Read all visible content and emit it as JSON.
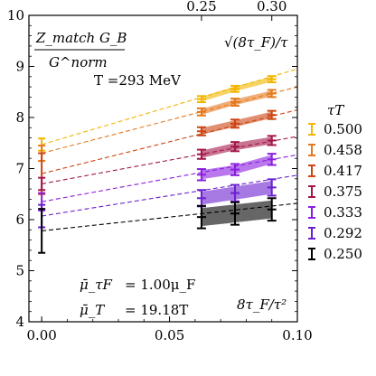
{
  "chart_data": {
    "type": "line",
    "ylabel_numerator": "Z_match G_B",
    "ylabel_denominator": "G^norm",
    "temperature_label": "T =293 MeV",
    "top_axis_label": "√(8τ_F)/τ",
    "xlabel": "8τ_F/τ²",
    "xlim": [
      -0.005,
      0.1
    ],
    "ylim": [
      4,
      10
    ],
    "xticks": [
      0.0,
      0.05,
      0.1
    ],
    "xtick_labels": [
      "0.00",
      "0.05",
      "0.10"
    ],
    "yticks": [
      4,
      5,
      6,
      7,
      8,
      9,
      10
    ],
    "ytick_labels": [
      "4",
      "5",
      "6",
      "7",
      "8",
      "9",
      "10"
    ],
    "top_ticks": [
      0.25,
      0.3
    ],
    "top_tick_labels": [
      "0.25",
      "0.30"
    ],
    "annotation_1_symbol": "μ̄_τF",
    "annotation_1_value": "= 1.00μ_F",
    "annotation_2_symbol": "μ̄_T",
    "annotation_2_value": "= 19.18T",
    "legend_title": "τT",
    "legend_placement": "right",
    "series": [
      {
        "name": "0.500",
        "color": "#f2b600",
        "intercept": 7.47,
        "int_err": 0.12,
        "slope": 14.8,
        "points": [
          [
            0.0625,
            8.36,
            0.06
          ],
          [
            0.0756,
            8.56,
            0.06
          ],
          [
            0.09,
            8.75,
            0.06
          ]
        ]
      },
      {
        "name": "0.458",
        "color": "#e5781c",
        "intercept": 7.3,
        "int_err": 0.15,
        "slope": 13.0,
        "points": [
          [
            0.0625,
            8.11,
            0.07
          ],
          [
            0.0756,
            8.3,
            0.07
          ],
          [
            0.09,
            8.47,
            0.07
          ]
        ]
      },
      {
        "name": "0.417",
        "color": "#cc4412",
        "intercept": 6.9,
        "int_err": 0.4,
        "slope": 12.5,
        "points": [
          [
            0.0625,
            7.73,
            0.08
          ],
          [
            0.0756,
            7.88,
            0.08
          ],
          [
            0.09,
            8.05,
            0.08
          ]
        ]
      },
      {
        "name": "0.375",
        "color": "#a3174a",
        "intercept": 6.7,
        "int_err": 0.12,
        "slope": 9.3,
        "points": [
          [
            0.0625,
            7.28,
            0.09
          ],
          [
            0.0756,
            7.43,
            0.09
          ],
          [
            0.09,
            7.55,
            0.09
          ]
        ]
      },
      {
        "name": "0.333",
        "color": "#8a1ee0",
        "intercept": 6.35,
        "int_err": 0.17,
        "slope": 9.2,
        "points": [
          [
            0.0625,
            6.88,
            0.11
          ],
          [
            0.0756,
            6.98,
            0.11
          ],
          [
            0.09,
            7.18,
            0.11
          ]
        ]
      },
      {
        "name": "0.292",
        "color": "#6a1fd0",
        "intercept": 6.07,
        "int_err": 0.22,
        "slope": 8.0,
        "points": [
          [
            0.0625,
            6.42,
            0.16
          ],
          [
            0.0756,
            6.52,
            0.16
          ],
          [
            0.09,
            6.63,
            0.16
          ]
        ]
      },
      {
        "name": "0.250",
        "color": "#000000",
        "intercept": 5.78,
        "int_err": 0.43,
        "slope": 5.4,
        "points": [
          [
            0.0625,
            6.05,
            0.22
          ],
          [
            0.0756,
            6.12,
            0.22
          ],
          [
            0.09,
            6.2,
            0.22
          ]
        ]
      }
    ]
  }
}
